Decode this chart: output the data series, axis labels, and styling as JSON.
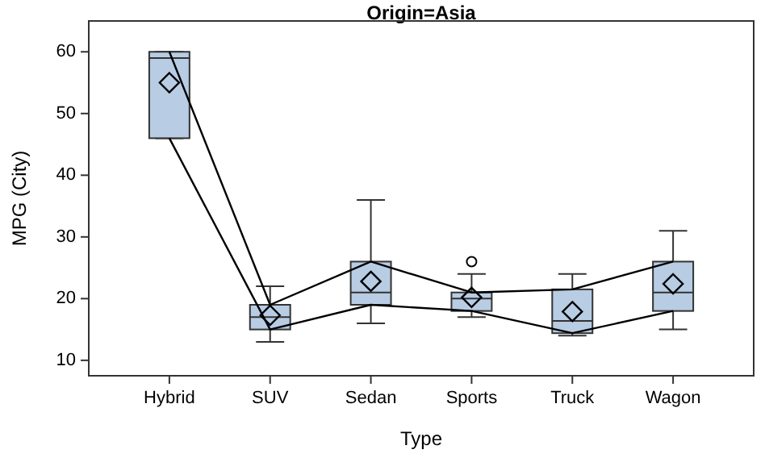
{
  "chart_data": {
    "type": "box",
    "title": "Origin=Asia",
    "xlabel": "Type",
    "ylabel": "MPG (City)",
    "categories": [
      "Hybrid",
      "SUV",
      "Sedan",
      "Sports",
      "Truck",
      "Wagon"
    ],
    "ylim": [
      7.5,
      65
    ],
    "yticks": [
      10,
      20,
      30,
      40,
      50,
      60
    ],
    "color": "#b8cce4",
    "boxes": [
      {
        "low": 46,
        "q1": 46,
        "median": 59,
        "q3": 60,
        "high": 60,
        "mean": 55
      },
      {
        "low": 13,
        "q1": 15,
        "median": 17,
        "q3": 19,
        "high": 22,
        "mean": 17.3
      },
      {
        "low": 16,
        "q1": 19,
        "median": 21,
        "q3": 26,
        "high": 36,
        "mean": 22.8
      },
      {
        "low": 17,
        "q1": 18,
        "median": 20,
        "q3": 21,
        "high": 24,
        "mean": 20.2,
        "outliers": [
          26
        ]
      },
      {
        "low": 14,
        "q1": 14.4,
        "median": 16.4,
        "q3": 21.5,
        "high": 24,
        "mean": 17.9
      },
      {
        "low": 15,
        "q1": 18,
        "median": 21,
        "q3": 26,
        "high": 31,
        "mean": 22.4
      }
    ],
    "series": [
      {
        "type": "line",
        "color": "#000000",
        "values": [
          46,
          15,
          19,
          18,
          14.4,
          18
        ]
      },
      {
        "type": "line",
        "color": "#000000",
        "values": [
          60,
          19,
          26,
          21,
          21.5,
          26
        ]
      }
    ]
  }
}
